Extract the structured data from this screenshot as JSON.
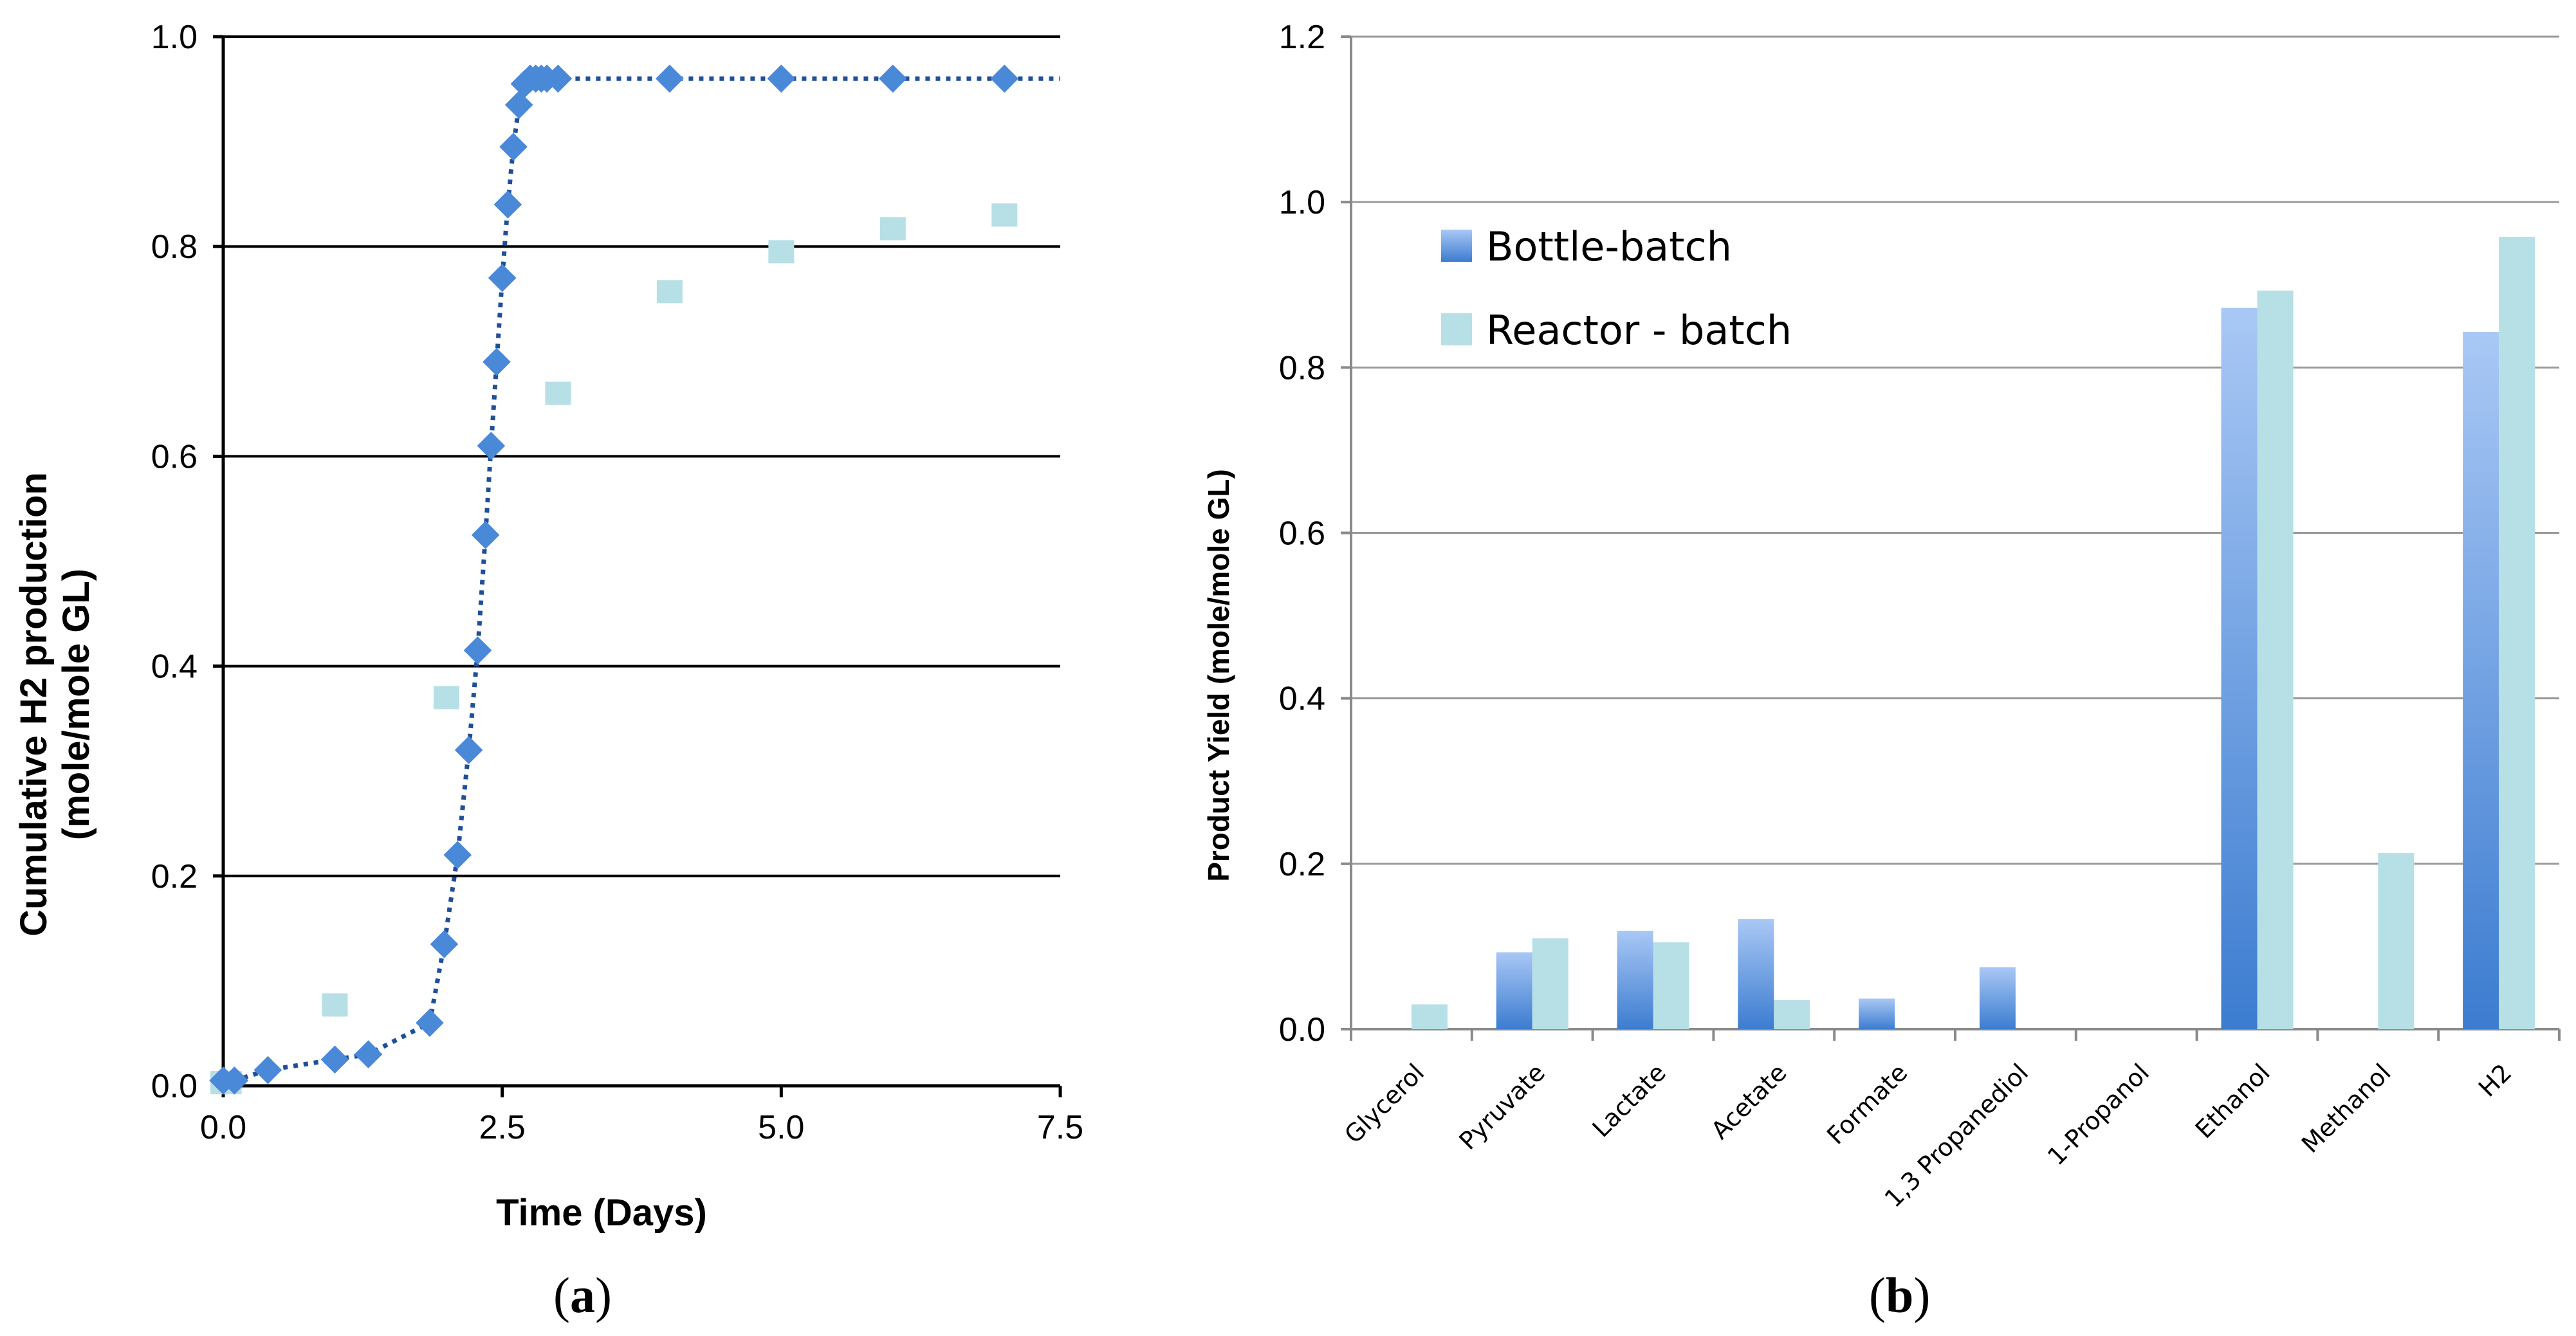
{
  "colors": {
    "bottle_dark": "#3c7cd0",
    "bottle_light": "#a9c8f5",
    "reactor": "#b6dfe6",
    "line_marker": "#4a88d8",
    "fit_line": "#1f4f99",
    "gridline_a": "#000000",
    "gridline_b": "#9a9a9a"
  },
  "chart_data": [
    {
      "type": "scatter",
      "panel": "a",
      "panel_label": {
        "open": "(",
        "letter": "a",
        "close": ")"
      },
      "title": "",
      "xlabel": "Time (Days)",
      "ylabel_line1": "Cumulative H2 production",
      "ylabel_line2": "(mole/mole GL)",
      "xlim": [
        0,
        7.5
      ],
      "ylim": [
        0,
        1.0
      ],
      "xticks": [
        0,
        2.5,
        5.0,
        7.5
      ],
      "xtick_labels": [
        "0.0",
        "2.5",
        "5.0",
        "7.5"
      ],
      "yticks": [
        0,
        0.2,
        0.4,
        0.6,
        0.8,
        1.0
      ],
      "ytick_labels": [
        "0.0",
        "0.2",
        "0.4",
        "0.6",
        "0.8",
        "1.0"
      ],
      "grid": "horizontal",
      "series": [
        {
          "name": "Bottle-batch",
          "marker": "diamond",
          "fit_line": "dotted",
          "x": [
            0,
            0.1,
            0.4,
            1.0,
            1.3,
            1.85,
            1.98,
            2.1,
            2.2,
            2.28,
            2.35,
            2.4,
            2.45,
            2.5,
            2.55,
            2.6,
            2.65,
            2.7,
            2.75,
            2.8,
            2.85,
            2.9,
            3.0,
            4.0,
            5.0,
            6.0,
            7.0
          ],
          "y": [
            0.005,
            0.005,
            0.015,
            0.025,
            0.03,
            0.06,
            0.135,
            0.22,
            0.32,
            0.415,
            0.525,
            0.61,
            0.69,
            0.77,
            0.84,
            0.895,
            0.935,
            0.955,
            0.96,
            0.96,
            0.96,
            0.96,
            0.96,
            0.96,
            0.96,
            0.96,
            0.96
          ]
        },
        {
          "name": "Reactor - batch",
          "marker": "square",
          "x": [
            0,
            0.05,
            1.0,
            2.0,
            3.0,
            4.0,
            5.0,
            6.0,
            7.0
          ],
          "y": [
            0.003,
            0.003,
            0.077,
            0.37,
            0.66,
            0.757,
            0.795,
            0.817,
            0.83
          ]
        }
      ]
    },
    {
      "type": "bar",
      "panel": "b",
      "panel_label": {
        "open": "(",
        "letter": "b",
        "close": ")"
      },
      "title": "",
      "xlabel": "",
      "ylabel": "Product Yield (mole/mole GL)",
      "ylim": [
        0,
        1.2
      ],
      "yticks": [
        0,
        0.2,
        0.4,
        0.6,
        0.8,
        1.0,
        1.2
      ],
      "ytick_labels": [
        "0.0",
        "0.2",
        "0.4",
        "0.6",
        "0.8",
        "1.0",
        "1.2"
      ],
      "grid": "horizontal",
      "legend_position": "upper-left",
      "categories": [
        "Glycerol",
        "Pyruvate",
        "Lactate",
        "Acetate",
        "Formate",
        "1,3 Propanediol",
        "1-Propanol",
        "Ethanol",
        "Methanol",
        "H2"
      ],
      "series": [
        {
          "name": "Bottle-batch",
          "values": [
            0,
            0.093,
            0.119,
            0.133,
            0.037,
            0.075,
            0,
            0.872,
            0,
            0.843
          ]
        },
        {
          "name": "Reactor - batch",
          "values": [
            0.03,
            0.11,
            0.105,
            0.035,
            0,
            0,
            0,
            0.893,
            0.213,
            0.958
          ]
        }
      ]
    }
  ]
}
